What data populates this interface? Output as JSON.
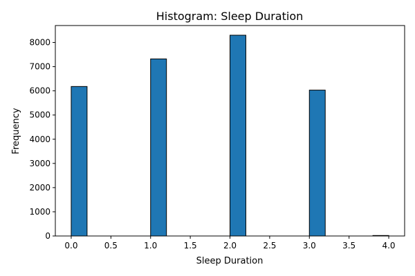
{
  "chart_data": {
    "type": "bar",
    "title": "Histogram: Sleep Duration",
    "xlabel": "Sleep Duration",
    "ylabel": "Frequency",
    "xlim": [
      -0.2,
      4.2
    ],
    "ylim": [
      0,
      8700
    ],
    "x_ticks": [
      "0.0",
      "0.5",
      "1.0",
      "1.5",
      "2.0",
      "2.5",
      "3.0",
      "3.5",
      "4.0"
    ],
    "y_ticks": [
      "0",
      "1000",
      "2000",
      "3000",
      "4000",
      "5000",
      "6000",
      "7000",
      "8000"
    ],
    "grid": false,
    "legend": "none",
    "bar_color": "#1f77b4",
    "edge_color": "#000000",
    "bins": [
      {
        "x0": 0.0,
        "x1": 0.2,
        "value": 6180
      },
      {
        "x0": 1.0,
        "x1": 1.2,
        "value": 7320
      },
      {
        "x0": 2.0,
        "x1": 2.2,
        "value": 8300
      },
      {
        "x0": 3.0,
        "x1": 3.2,
        "value": 6030
      },
      {
        "x0": 3.8,
        "x1": 4.0,
        "value": 20
      }
    ]
  }
}
